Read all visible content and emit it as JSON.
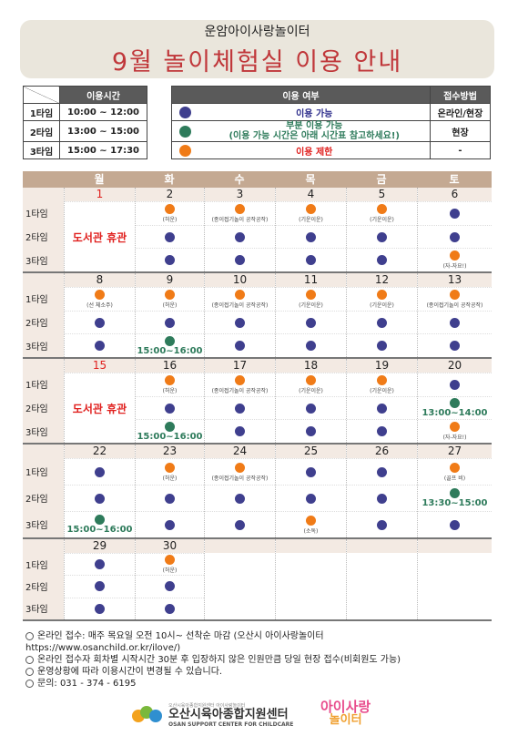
{
  "header": {
    "subtitle": "운암아이사랑놀이터",
    "title": "9월 놀이체험실 이용 안내"
  },
  "time_table": {
    "header": "이용시간",
    "rows": [
      {
        "slot": "1타임",
        "time": "10:00 ~ 12:00"
      },
      {
        "slot": "2타임",
        "time": "13:00 ~ 15:00"
      },
      {
        "slot": "3타임",
        "time": "15:00 ~ 17:30"
      }
    ]
  },
  "legend_table": {
    "header_status": "이용 여부",
    "header_method": "접수방법",
    "rows": [
      {
        "color": "#3f3f8e",
        "status": "이용 가능",
        "method": "온라인/현장"
      },
      {
        "color": "#2e7b5b",
        "status": "부분 이용 가능",
        "status2": "(이용 가능 시간은 아래 시간표 참고하세요!)",
        "method": "현장"
      },
      {
        "color": "#f07b17",
        "status": "이용 제한",
        "method": "-"
      }
    ]
  },
  "calendar": {
    "weekdays": [
      "월",
      "화",
      "수",
      "목",
      "금",
      "토"
    ],
    "slot_labels": [
      "1타임",
      "2타임",
      "3타임"
    ],
    "closed_label": "도서관 휴관",
    "weeks": [
      {
        "days": [
          {
            "date": "1",
            "closed": true
          },
          {
            "date": "2",
            "slots": [
              {
                "s": "o",
                "note": "(허운)"
              },
              {
                "s": "b"
              },
              {
                "s": "b"
              }
            ]
          },
          {
            "date": "3",
            "slots": [
              {
                "s": "o",
                "note": "(종이접기놀이 공작공작)"
              },
              {
                "s": "b"
              },
              {
                "s": "b"
              }
            ]
          },
          {
            "date": "4",
            "slots": [
              {
                "s": "o",
                "note": "(기운이운)"
              },
              {
                "s": "b"
              },
              {
                "s": "b"
              }
            ]
          },
          {
            "date": "5",
            "slots": [
              {
                "s": "o",
                "note": "(기운이운)"
              },
              {
                "s": "b"
              },
              {
                "s": "b"
              }
            ]
          },
          {
            "date": "6",
            "slots": [
              {
                "s": "b"
              },
              {
                "s": "b"
              },
              {
                "s": "o",
                "note": "(자-자요!)"
              }
            ]
          }
        ]
      },
      {
        "days": [
          {
            "date": "8",
            "slots": [
              {
                "s": "o",
                "note": "(선 체소주)"
              },
              {
                "s": "b"
              },
              {
                "s": "b"
              }
            ]
          },
          {
            "date": "9",
            "slots": [
              {
                "s": "o",
                "note": "(허운)"
              },
              {
                "s": "b"
              },
              {
                "s": "g",
                "time": "15:00~16:00"
              }
            ]
          },
          {
            "date": "10",
            "slots": [
              {
                "s": "o",
                "note": "(종이접기놀이 공작공작)"
              },
              {
                "s": "b"
              },
              {
                "s": "b"
              }
            ]
          },
          {
            "date": "11",
            "slots": [
              {
                "s": "o",
                "note": "(기운이운)"
              },
              {
                "s": "b"
              },
              {
                "s": "b"
              }
            ]
          },
          {
            "date": "12",
            "slots": [
              {
                "s": "o",
                "note": "(기운이운)"
              },
              {
                "s": "b"
              },
              {
                "s": "b"
              }
            ]
          },
          {
            "date": "13",
            "slots": [
              {
                "s": "o",
                "note": "(종이접기놀이 공작공작)"
              },
              {
                "s": "b"
              },
              {
                "s": "b"
              }
            ]
          }
        ]
      },
      {
        "days": [
          {
            "date": "15",
            "closed": true
          },
          {
            "date": "16",
            "slots": [
              {
                "s": "o",
                "note": "(허운)"
              },
              {
                "s": "b"
              },
              {
                "s": "g",
                "time": "15:00~16:00"
              }
            ]
          },
          {
            "date": "17",
            "slots": [
              {
                "s": "o",
                "note": "(종이접기놀이 공작공작)"
              },
              {
                "s": "b"
              },
              {
                "s": "b"
              }
            ]
          },
          {
            "date": "18",
            "slots": [
              {
                "s": "o",
                "note": "(기운이운)"
              },
              {
                "s": "b"
              },
              {
                "s": "b"
              }
            ]
          },
          {
            "date": "19",
            "slots": [
              {
                "s": "o",
                "note": "(기운이운)"
              },
              {
                "s": "b"
              },
              {
                "s": "b"
              }
            ]
          },
          {
            "date": "20",
            "slots": [
              {
                "s": "b"
              },
              {
                "s": "g",
                "time": "13:00~14:00"
              },
              {
                "s": "o",
                "note": "(자-자요!)"
              }
            ]
          }
        ]
      },
      {
        "days": [
          {
            "date": "22",
            "slots": [
              {
                "s": "b"
              },
              {
                "s": "b"
              },
              {
                "s": "g",
                "time": "15:00~16:00"
              }
            ]
          },
          {
            "date": "23",
            "slots": [
              {
                "s": "o",
                "note": "(허운)"
              },
              {
                "s": "b"
              },
              {
                "s": "b"
              }
            ]
          },
          {
            "date": "24",
            "slots": [
              {
                "s": "o",
                "note": "(종이접기놀이 공작공작)"
              },
              {
                "s": "b"
              },
              {
                "s": "b"
              }
            ]
          },
          {
            "date": "25",
            "slots": [
              {
                "s": "b"
              },
              {
                "s": "b"
              },
              {
                "s": "o",
                "note": "(소독)"
              }
            ]
          },
          {
            "date": "26",
            "slots": [
              {
                "s": "b"
              },
              {
                "s": "b"
              },
              {
                "s": "b"
              }
            ]
          },
          {
            "date": "27",
            "slots": [
              {
                "s": "o",
                "note": "(골프 비)"
              },
              {
                "s": "g",
                "time": "13:30~15:00"
              },
              {
                "s": "b"
              }
            ]
          }
        ]
      },
      {
        "days": [
          {
            "date": "29",
            "slots": [
              {
                "s": "b"
              },
              {
                "s": "b"
              },
              {
                "s": "b"
              }
            ]
          },
          {
            "date": "30",
            "slots": [
              {
                "s": "o",
                "note": "(허운)"
              },
              {
                "s": "b"
              },
              {
                "s": "b"
              }
            ]
          },
          {
            "date": "",
            "empty": true
          },
          {
            "date": "",
            "empty": true
          },
          {
            "date": "",
            "empty": true
          },
          {
            "date": "",
            "empty": true
          }
        ]
      }
    ]
  },
  "footer": {
    "line1": "온라인 접수: 매주 목요일 오전 10시~ 선착순 마감 (오산시 아이사랑놀이터",
    "line1b": "https://www.osanchild.or.kr/ilove/)",
    "line2": "온라인 접수자 회차별 시작시간 30분 후 입장하지 않은 인원만큼 당일 현장 접수(비회원도 가능)",
    "line3": "운영상황에 따라 이용시간이 변경될 수 있습니다.",
    "line4": "문의: 031 - 374 - 6195"
  },
  "logos": {
    "center_small": "오산시육아종합지원센터 아이사랑놀이터",
    "center_name": "오산시육아종합지원센터",
    "center_en": "OSAN SUPPORT CENTER FOR CHILDCARE",
    "brand_top": "아이사랑",
    "brand_bottom": "놀이터"
  },
  "colors": {
    "available": "#3f3f8e",
    "partial": "#2e7b5b",
    "restricted": "#f07b17",
    "title": "#c0373a",
    "holiday": "#e0201e"
  }
}
